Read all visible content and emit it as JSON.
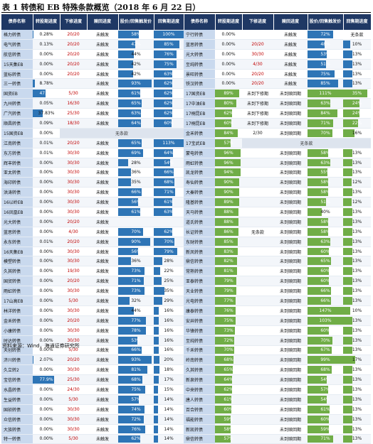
{
  "title": "表 1 转债和 EB 特殊条款概览（2018 年 6 月 22 日）",
  "footer": "资料来源：Wind，海通证券研究所",
  "headers": [
    "债券名称",
    "转股期进度",
    "下修进度",
    "赎回进度",
    "股价/回售触发价",
    "回售期进度",
    "债券名称",
    "转股期进度",
    "下修进度",
    "赎回进度",
    "股价/回售触发价",
    "回售期进度"
  ],
  "left_rows": [
    {
      "name": "格力转债",
      "conv": "0.28%",
      "down": "20/20",
      "redeem": "未触发",
      "pct": "58%",
      "put": "100%"
    },
    {
      "name": "电气转债",
      "conv": "0.13%",
      "down": "20/20",
      "redeem": "未触发",
      "pct": "47%",
      "put": "85%"
    },
    {
      "name": "航信转债",
      "conv": "0.00%",
      "down": "20/20",
      "redeem": "未触发",
      "pct": "44%",
      "put": "76%"
    },
    {
      "name": "15天集EB",
      "conv": "0.00%",
      "down": "20/20",
      "redeem": "未触发",
      "pct": "42%",
      "put": "75%"
    },
    {
      "name": "蓝标转债",
      "conv": "0.00%",
      "down": "20/20",
      "redeem": "未触发",
      "pct": "42%",
      "put": "63%"
    },
    {
      "name": "三一转债",
      "conv": "8.78%",
      "down": "",
      "redeem": "未触发",
      "pct": "93%",
      "put": "62%"
    },
    {
      "name": "国资EB",
      "conv": "47.7%",
      "down": "5/30",
      "redeem": "未触发",
      "pct": "61%",
      "put": "62%"
    },
    {
      "name": "九州转债",
      "conv": "0.05%",
      "down": "16/30",
      "redeem": "未触发",
      "pct": "65%",
      "put": "62%"
    },
    {
      "name": "广汽转债",
      "conv": "37.83%",
      "down": "25/30",
      "redeem": "未触发",
      "pct": "63%",
      "put": "62%"
    },
    {
      "name": "顺昌转债",
      "conv": "0.09%",
      "down": "18/30",
      "redeem": "未触发",
      "pct": "64%",
      "put": "60%"
    },
    {
      "name": "15国资EB",
      "conv": "0.00%",
      "down": "",
      "redeem": "",
      "pct": "",
      "put": ""
    },
    {
      "name": "江南转债",
      "conv": "0.01%",
      "down": "20/20",
      "redeem": "未触发",
      "pct": "65%",
      "put": "113%"
    },
    {
      "name": "东方转债",
      "conv": "0.01%",
      "down": "30/30",
      "redeem": "未触发",
      "pct": "69%",
      "put": "64%"
    },
    {
      "name": "辉丰转债",
      "conv": "0.00%",
      "down": "30/30",
      "redeem": "未触发",
      "pct": "28%",
      "put": "54%"
    },
    {
      "name": "亚太转债",
      "conv": "0.00%",
      "down": "30/30",
      "redeem": "未触发",
      "pct": "36%",
      "put": "66%"
    },
    {
      "name": "海印转债",
      "conv": "0.00%",
      "down": "30/30",
      "redeem": "未触发",
      "pct": "35%",
      "put": "68%"
    },
    {
      "name": "洪涛转债",
      "conv": "0.00%",
      "down": "30/30",
      "redeem": "未触发",
      "pct": "66%",
      "put": "71%"
    },
    {
      "name": "16以岭EB",
      "conv": "0.00%",
      "down": "30/30",
      "redeem": "未触发",
      "pct": "56%",
      "put": "61%"
    },
    {
      "name": "16凤凰EB",
      "conv": "0.00%",
      "down": "30/30",
      "redeem": "未触发",
      "pct": "61%",
      "put": "63%"
    },
    {
      "name": "光大转债",
      "conv": "0.00%",
      "down": "20/20",
      "redeem": "未触发",
      "pct": "",
      "put": ""
    },
    {
      "name": "蓝思转债",
      "conv": "0.00%",
      "down": "4/30",
      "redeem": "未触发",
      "pct": "70%",
      "put": "62%"
    },
    {
      "name": "永东转债",
      "conv": "0.01%",
      "down": "20/20",
      "redeem": "未触发",
      "pct": "90%",
      "put": "70%"
    },
    {
      "name": "16天集EB",
      "conv": "0.00%",
      "down": "30/30",
      "redeem": "未触发",
      "pct": "56%",
      "put": "79%"
    },
    {
      "name": "模塑转债",
      "conv": "0.00%",
      "down": "30/30",
      "redeem": "未触发",
      "pct": "36%",
      "put": "28%"
    },
    {
      "name": "久其转债",
      "conv": "0.00%",
      "down": "19/30",
      "redeem": "未触发",
      "pct": "73%",
      "put": "22%"
    },
    {
      "name": "国贸转债",
      "conv": "0.00%",
      "down": "20/20",
      "redeem": "未触发",
      "pct": "71%",
      "put": "25%"
    },
    {
      "name": "雨虹转债",
      "conv": "0.00%",
      "down": "30/30",
      "redeem": "未触发",
      "pct": "73%",
      "put": "35%"
    },
    {
      "name": "17山高EB",
      "conv": "0.00%",
      "down": "5/30",
      "redeem": "未触发",
      "pct": "32%",
      "put": "29%"
    },
    {
      "name": "林洋转债",
      "conv": "0.00%",
      "down": "30/30",
      "redeem": "未触发",
      "pct": "44%",
      "put": "16%"
    },
    {
      "name": "金禾转债",
      "conv": "0.00%",
      "down": "20/20",
      "redeem": "未触发",
      "pct": "77%",
      "put": "16%"
    },
    {
      "name": "小康转债",
      "conv": "0.00%",
      "down": "30/30",
      "redeem": "未触发",
      "pct": "78%",
      "put": "16%"
    },
    {
      "name": "时达转债",
      "conv": "0.00%",
      "down": "30/30",
      "redeem": "未触发",
      "pct": "53%",
      "put": "16%"
    },
    {
      "name": "天创转债",
      "conv": "0.00%",
      "down": "5/30",
      "redeem": "未触发",
      "pct": "66%",
      "put": "16%"
    },
    {
      "name": "济川转债",
      "conv": "2.07%",
      "down": "20/20",
      "redeem": "未触发",
      "pct": "93%",
      "put": "20%"
    },
    {
      "name": "久立转2",
      "conv": "0.00%",
      "down": "30/30",
      "redeem": "未触发",
      "pct": "81%",
      "put": "18%"
    },
    {
      "name": "宝信转债",
      "conv": "77.9%",
      "down": "25/30",
      "redeem": "未触发",
      "pct": "68%",
      "put": "17%"
    },
    {
      "name": "水晶转债",
      "conv": "0.00%",
      "down": "24/30",
      "redeem": "未触发",
      "pct": "75%",
      "put": "15%"
    },
    {
      "name": "生益转债",
      "conv": "0.00%",
      "down": "5/30",
      "redeem": "未触发",
      "pct": "57%",
      "put": "14%"
    },
    {
      "name": "国祯转债",
      "conv": "0.00%",
      "down": "30/30",
      "redeem": "未触发",
      "pct": "74%",
      "put": "14%"
    },
    {
      "name": "众信转债",
      "conv": "0.00%",
      "down": "30/30",
      "redeem": "未触发",
      "pct": "72%",
      "put": "14%"
    },
    {
      "name": "大族转债",
      "conv": "0.00%",
      "down": "30/30",
      "redeem": "未触发",
      "pct": "76%",
      "put": "14%"
    },
    {
      "name": "特一转债",
      "conv": "0.00%",
      "down": "5/30",
      "redeem": "未触发",
      "pct": "62%",
      "put": "14%"
    }
  ],
  "right_rows": [
    {
      "name": "宁行转债",
      "conv": "0.00%",
      "down": "",
      "redeem": "未触发",
      "pct": "72%",
      "put": "无条款"
    },
    {
      "name": "蓝思转债",
      "conv": "0.00%",
      "down": "20/20",
      "redeem": "未触发",
      "pct": "48%",
      "put": "10%"
    },
    {
      "name": "光大转债",
      "conv": "0.00%",
      "down": "30/30",
      "redeem": "未触发",
      "pct": "53%",
      "put": "13%"
    },
    {
      "name": "至纯转债",
      "conv": "0.00%",
      "down": "4/30",
      "redeem": "未触发",
      "pct": "51%",
      "put": "13%"
    },
    {
      "name": "景旺转债",
      "conv": "0.00%",
      "down": "20/20",
      "redeem": "未触发",
      "pct": "75%",
      "put": "13%"
    },
    {
      "name": "铁汉转债",
      "conv": "0.00%",
      "down": "20/20",
      "redeem": "未触发",
      "pct": "85%",
      "put": "13%"
    },
    {
      "name": "17国资EB",
      "conv": "89%",
      "down": "未到下修期",
      "redeem": "未到赎回期",
      "pct": "111%",
      "put": "35%"
    },
    {
      "name": "17中油EB",
      "conv": "80%",
      "down": "未到下修期",
      "redeem": "未到赎回期",
      "pct": "63%",
      "put": "24%"
    },
    {
      "name": "17桐昆EB",
      "conv": "62%",
      "down": "未到下修期",
      "redeem": "未到赎回期",
      "pct": "84%",
      "put": "24%"
    },
    {
      "name": "17桐昆EB",
      "conv": "60%",
      "down": "未到下修期",
      "redeem": "未到赎回期",
      "pct": "71%",
      "put": "22%"
    },
    {
      "name": "金禾转债",
      "conv": "84%",
      "down": "2/30",
      "redeem": "未到赎回期",
      "pct": "70%",
      "put": "16%"
    },
    {
      "name": "17宝武EB",
      "conv": "57%",
      "down": "",
      "redeem": "",
      "pct": "",
      "put": ""
    },
    {
      "name": "蒙电转债",
      "conv": "96%",
      "down": "",
      "redeem": "未到赎回期",
      "pct": "58%",
      "put": "13%"
    },
    {
      "name": "雨虹转债",
      "conv": "96%",
      "down": "",
      "redeem": "未到赎回期",
      "pct": "63%",
      "put": "13%"
    },
    {
      "name": "凯龙转债",
      "conv": "94%",
      "down": "",
      "redeem": "未到赎回期",
      "pct": "55%",
      "put": "13%"
    },
    {
      "name": "寿仙转债",
      "conv": "90%",
      "down": "",
      "redeem": "未到赎回期",
      "pct": "58%",
      "put": "12%"
    },
    {
      "name": "大秦转债",
      "conv": "90%",
      "down": "",
      "redeem": "未到赎回期",
      "pct": "58%",
      "put": "13%"
    },
    {
      "name": "隆基转债",
      "conv": "89%",
      "down": "",
      "redeem": "未到赎回期",
      "pct": "51%",
      "put": "12%"
    },
    {
      "name": "天马转债",
      "conv": "88%",
      "down": "",
      "redeem": "未到赎回期",
      "pct": "40%",
      "put": "13%"
    },
    {
      "name": "道氏转债",
      "conv": "88%",
      "down": "",
      "redeem": "未到赎回期",
      "pct": "58%",
      "put": "13%"
    },
    {
      "name": "长证转债",
      "conv": "86%",
      "down": "无条款",
      "redeem": "未到赎回期",
      "pct": "58%",
      "put": "13%"
    },
    {
      "name": "东财转债",
      "conv": "85%",
      "down": "",
      "redeem": "未到赎回期",
      "pct": "63%",
      "put": "13%"
    },
    {
      "name": "新凤转债",
      "conv": "83%",
      "down": "",
      "redeem": "未到赎回期",
      "pct": "60%",
      "put": "13%"
    },
    {
      "name": "鼎信转债",
      "conv": "82%",
      "down": "",
      "redeem": "未到赎回期",
      "pct": "65%",
      "put": "13%"
    },
    {
      "name": "常熟转债",
      "conv": "81%",
      "down": "",
      "redeem": "未到赎回期",
      "pct": "60%",
      "put": "13%"
    },
    {
      "name": "亚泰转债",
      "conv": "79%",
      "down": "",
      "redeem": "未到赎回期",
      "pct": "60%",
      "put": "13%"
    },
    {
      "name": "天业转债",
      "conv": "79%",
      "down": "",
      "redeem": "未到赎回期",
      "pct": "66%",
      "put": "13%"
    },
    {
      "name": "光电转债",
      "conv": "77%",
      "down": "",
      "redeem": "未到赎回期",
      "pct": "66%",
      "put": "13%"
    },
    {
      "name": "康泰转债",
      "conv": "76%",
      "down": "",
      "redeem": "未到赎回期",
      "pct": "147%",
      "put": "10%"
    },
    {
      "name": "安井转债",
      "conv": "75%",
      "down": "",
      "redeem": "未到赎回期",
      "pct": "103%",
      "put": "13%"
    },
    {
      "name": "华锋转债",
      "conv": "73%",
      "down": "",
      "redeem": "未到赎回期",
      "pct": "60%",
      "put": "13%"
    },
    {
      "name": "至纯转债",
      "conv": "72%",
      "down": "",
      "redeem": "未到赎回期",
      "pct": "70%",
      "put": "13%"
    },
    {
      "name": "千禾转债",
      "conv": "70%",
      "down": "",
      "redeem": "未到赎回期",
      "pct": "67%",
      "put": "13%"
    },
    {
      "name": "岭南转债",
      "conv": "68%",
      "down": "",
      "redeem": "未到赎回期",
      "pct": "99%",
      "put": "17%"
    },
    {
      "name": "久其转债",
      "conv": "65%",
      "down": "",
      "redeem": "未到赎回期",
      "pct": "68%",
      "put": "13%"
    },
    {
      "name": "新泉转债",
      "conv": "64%",
      "down": "",
      "redeem": "未到赎回期",
      "pct": "54%",
      "put": "13%"
    },
    {
      "name": "中来转债",
      "conv": "62%",
      "down": "",
      "redeem": "未到赎回期",
      "pct": "57%",
      "put": "13%"
    },
    {
      "name": "唐人转债",
      "conv": "61%",
      "down": "",
      "redeem": "未到赎回期",
      "pct": "54%",
      "put": "13%"
    },
    {
      "name": "百合转债",
      "conv": "60%",
      "down": "",
      "redeem": "未到赎回期",
      "pct": "61%",
      "put": "13%"
    },
    {
      "name": "福能转债",
      "conv": "59%",
      "down": "",
      "redeem": "未到赎回期",
      "pct": "60%",
      "put": "13%"
    },
    {
      "name": "新凯转债",
      "conv": "58%",
      "down": "",
      "redeem": "未到赎回期",
      "pct": "59%",
      "put": "13%"
    },
    {
      "name": "鼎信转债",
      "conv": "57%",
      "down": "",
      "redeem": "未到赎回期",
      "pct": "71%",
      "put": "13%"
    }
  ],
  "notes": {
    "no_clause": "无条款",
    "left_span": "无条款",
    "right_span": "无条款",
    "right_group_label": "已进入转股期",
    "left_group_label": "已进入转股期"
  },
  "colors": {
    "header": "#1f3864",
    "bar_blue": "#2e75b6",
    "bar_green": "#70ad47",
    "name_bg": "#c9d9ee"
  }
}
